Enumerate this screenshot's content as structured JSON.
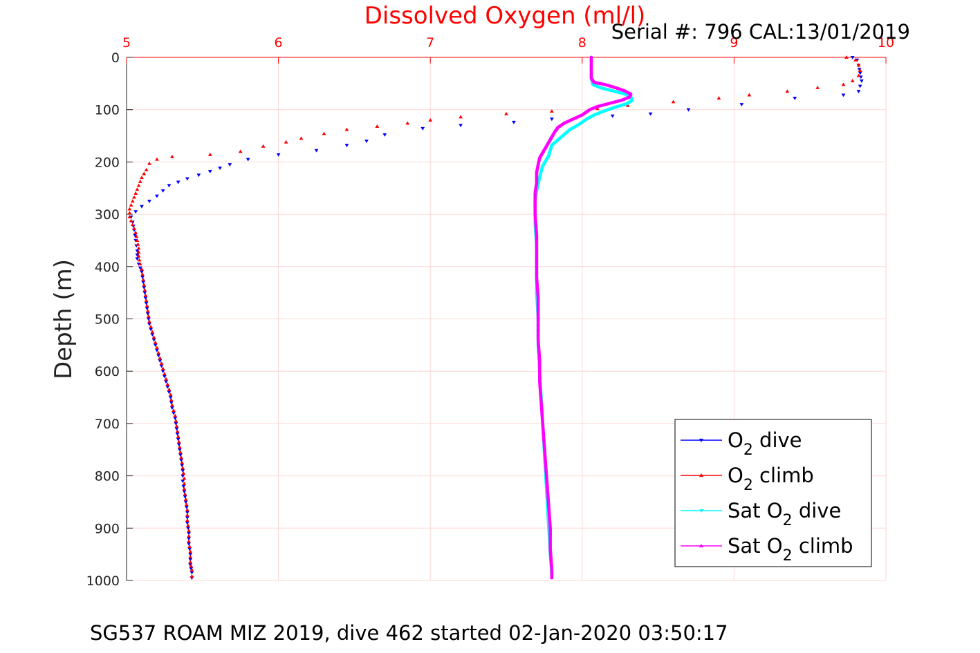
{
  "chart_data": {
    "type": "scatter",
    "title": "Dissolved Oxygen (ml/l)",
    "serial_text": "Serial #: 796  CAL:13/01/2019",
    "caption": "SG537 ROAM MIZ 2019, dive 462 started 02-Jan-2020 03:50:17",
    "xlabel": "Dissolved Oxygen (ml/l)",
    "ylabel": "Depth (m)",
    "xlim": [
      5,
      10
    ],
    "ylim": [
      0,
      1000
    ],
    "y_reversed": true,
    "x_axis_position": "top",
    "x_ticks": [
      5,
      6,
      7,
      8,
      9,
      10
    ],
    "y_ticks": [
      0,
      100,
      200,
      300,
      400,
      500,
      600,
      700,
      800,
      900,
      1000
    ],
    "grid": true,
    "grid_color": "#ffd6d6",
    "title_color": "#ff0000",
    "legend_placement": "bottom-right",
    "series": [
      {
        "name": "O2 dive",
        "label_main": "O",
        "label_sub": "2",
        "label_rest": " dive",
        "color": "#0000ff",
        "marker": "triangle-down",
        "points": [
          [
            9.78,
            0
          ],
          [
            9.81,
            5
          ],
          [
            9.82,
            15
          ],
          [
            9.83,
            30
          ],
          [
            9.84,
            45
          ],
          [
            9.83,
            55
          ],
          [
            9.82,
            65
          ],
          [
            9.72,
            72
          ],
          [
            9.4,
            78
          ],
          [
            9.05,
            90
          ],
          [
            8.7,
            100
          ],
          [
            8.45,
            108
          ],
          [
            8.2,
            112
          ],
          [
            7.8,
            118
          ],
          [
            7.55,
            124
          ],
          [
            7.2,
            130
          ],
          [
            6.95,
            136
          ],
          [
            6.7,
            148
          ],
          [
            6.58,
            160
          ],
          [
            6.45,
            168
          ],
          [
            6.25,
            178
          ],
          [
            6.0,
            186
          ],
          [
            5.8,
            195
          ],
          [
            5.68,
            205
          ],
          [
            5.55,
            218
          ],
          [
            5.4,
            232
          ],
          [
            5.28,
            245
          ],
          [
            5.24,
            255
          ],
          [
            5.2,
            265
          ],
          [
            5.15,
            275
          ],
          [
            5.1,
            285
          ],
          [
            5.06,
            295
          ],
          [
            5.03,
            305
          ],
          [
            5.04,
            315
          ],
          [
            5.05,
            330
          ],
          [
            5.06,
            350
          ],
          [
            5.07,
            370
          ],
          [
            5.07,
            385
          ],
          [
            5.08,
            395
          ],
          [
            5.1,
            410
          ],
          [
            5.11,
            430
          ],
          [
            5.12,
            450
          ],
          [
            5.13,
            470
          ],
          [
            5.14,
            490
          ],
          [
            5.15,
            510
          ],
          [
            5.17,
            530
          ],
          [
            5.19,
            550
          ],
          [
            5.21,
            570
          ],
          [
            5.23,
            590
          ],
          [
            5.25,
            610
          ],
          [
            5.27,
            630
          ],
          [
            5.29,
            650
          ],
          [
            5.3,
            670
          ],
          [
            5.32,
            690
          ],
          [
            5.33,
            710
          ],
          [
            5.34,
            730
          ],
          [
            5.35,
            750
          ],
          [
            5.36,
            770
          ],
          [
            5.37,
            790
          ],
          [
            5.37,
            810
          ],
          [
            5.38,
            830
          ],
          [
            5.39,
            850
          ],
          [
            5.4,
            870
          ],
          [
            5.4,
            890
          ],
          [
            5.41,
            910
          ],
          [
            5.41,
            930
          ],
          [
            5.42,
            950
          ],
          [
            5.42,
            970
          ],
          [
            5.43,
            985
          ],
          [
            5.43,
            995
          ]
        ]
      },
      {
        "name": "O2 climb",
        "label_main": "O",
        "label_sub": "2",
        "label_rest": " climb",
        "color": "#ff0000",
        "marker": "triangle-up",
        "points": [
          [
            9.74,
            0
          ],
          [
            9.8,
            5
          ],
          [
            9.82,
            15
          ],
          [
            9.83,
            25
          ],
          [
            9.82,
            35
          ],
          [
            9.78,
            45
          ],
          [
            9.72,
            52
          ],
          [
            9.55,
            58
          ],
          [
            9.35,
            65
          ],
          [
            9.1,
            72
          ],
          [
            8.9,
            78
          ],
          [
            8.6,
            85
          ],
          [
            8.3,
            92
          ],
          [
            8.1,
            98
          ],
          [
            7.8,
            103
          ],
          [
            7.5,
            108
          ],
          [
            7.2,
            114
          ],
          [
            7.0,
            120
          ],
          [
            6.85,
            126
          ],
          [
            6.65,
            132
          ],
          [
            6.45,
            138
          ],
          [
            6.3,
            146
          ],
          [
            6.15,
            155
          ],
          [
            6.05,
            162
          ],
          [
            5.9,
            170
          ],
          [
            5.75,
            180
          ],
          [
            5.55,
            186
          ],
          [
            5.3,
            190
          ],
          [
            5.2,
            195
          ],
          [
            5.15,
            203
          ],
          [
            5.13,
            215
          ],
          [
            5.1,
            230
          ],
          [
            5.08,
            245
          ],
          [
            5.06,
            260
          ],
          [
            5.04,
            275
          ],
          [
            5.02,
            290
          ],
          [
            5.02,
            305
          ],
          [
            5.04,
            320
          ],
          [
            5.06,
            335
          ],
          [
            5.07,
            350
          ],
          [
            5.08,
            365
          ],
          [
            5.08,
            380
          ],
          [
            5.09,
            395
          ],
          [
            5.1,
            405
          ],
          [
            5.11,
            425
          ],
          [
            5.12,
            445
          ],
          [
            5.13,
            465
          ],
          [
            5.14,
            485
          ],
          [
            5.15,
            505
          ],
          [
            5.17,
            525
          ],
          [
            5.19,
            545
          ],
          [
            5.21,
            565
          ],
          [
            5.23,
            585
          ],
          [
            5.25,
            605
          ],
          [
            5.27,
            625
          ],
          [
            5.29,
            645
          ],
          [
            5.3,
            665
          ],
          [
            5.32,
            685
          ],
          [
            5.33,
            705
          ],
          [
            5.34,
            725
          ],
          [
            5.35,
            745
          ],
          [
            5.36,
            765
          ],
          [
            5.37,
            785
          ],
          [
            5.38,
            805
          ],
          [
            5.38,
            825
          ],
          [
            5.39,
            845
          ],
          [
            5.4,
            865
          ],
          [
            5.4,
            885
          ],
          [
            5.41,
            905
          ],
          [
            5.41,
            925
          ],
          [
            5.42,
            945
          ],
          [
            5.42,
            965
          ],
          [
            5.43,
            980
          ],
          [
            5.43,
            992
          ]
        ]
      },
      {
        "name": "Sat O2 dive",
        "label_main": "Sat O",
        "label_sub": "2",
        "label_rest": " dive",
        "color": "#00ffff",
        "marker": "triangle-down",
        "points": [
          [
            8.06,
            0
          ],
          [
            8.06,
            20
          ],
          [
            8.06,
            40
          ],
          [
            8.07,
            52
          ],
          [
            8.12,
            58
          ],
          [
            8.2,
            64
          ],
          [
            8.28,
            70
          ],
          [
            8.32,
            76
          ],
          [
            8.33,
            82
          ],
          [
            8.3,
            88
          ],
          [
            8.22,
            95
          ],
          [
            8.15,
            102
          ],
          [
            8.08,
            110
          ],
          [
            8.03,
            118
          ],
          [
            7.98,
            128
          ],
          [
            7.92,
            138
          ],
          [
            7.88,
            148
          ],
          [
            7.84,
            158
          ],
          [
            7.8,
            168
          ],
          [
            7.79,
            178
          ],
          [
            7.78,
            188
          ],
          [
            7.76,
            198
          ],
          [
            7.74,
            208
          ],
          [
            7.73,
            218
          ],
          [
            7.72,
            230
          ],
          [
            7.71,
            242
          ],
          [
            7.7,
            256
          ],
          [
            7.69,
            272
          ],
          [
            7.69,
            290
          ],
          [
            7.69,
            320
          ],
          [
            7.7,
            360
          ],
          [
            7.7,
            400
          ],
          [
            7.7,
            450
          ],
          [
            7.71,
            500
          ],
          [
            7.71,
            550
          ],
          [
            7.72,
            600
          ],
          [
            7.73,
            650
          ],
          [
            7.74,
            700
          ],
          [
            7.75,
            750
          ],
          [
            7.76,
            800
          ],
          [
            7.77,
            850
          ],
          [
            7.78,
            900
          ],
          [
            7.79,
            950
          ],
          [
            7.8,
            990
          ]
        ]
      },
      {
        "name": "Sat O2 climb",
        "label_main": "Sat O",
        "label_sub": "2",
        "label_rest": " climb",
        "color": "#ff00ff",
        "marker": "triangle-up",
        "points": [
          [
            8.06,
            0
          ],
          [
            8.06,
            20
          ],
          [
            8.06,
            40
          ],
          [
            8.08,
            48
          ],
          [
            8.15,
            52
          ],
          [
            8.22,
            58
          ],
          [
            8.28,
            64
          ],
          [
            8.32,
            70
          ],
          [
            8.31,
            76
          ],
          [
            8.26,
            82
          ],
          [
            8.18,
            88
          ],
          [
            8.1,
            94
          ],
          [
            8.05,
            100
          ],
          [
            8.0,
            110
          ],
          [
            7.94,
            118
          ],
          [
            7.88,
            126
          ],
          [
            7.84,
            134
          ],
          [
            7.82,
            142
          ],
          [
            7.8,
            152
          ],
          [
            7.78,
            162
          ],
          [
            7.76,
            172
          ],
          [
            7.74,
            182
          ],
          [
            7.72,
            192
          ],
          [
            7.71,
            205
          ],
          [
            7.7,
            220
          ],
          [
            7.7,
            240
          ],
          [
            7.69,
            260
          ],
          [
            7.69,
            280
          ],
          [
            7.69,
            300
          ],
          [
            7.7,
            340
          ],
          [
            7.7,
            380
          ],
          [
            7.7,
            420
          ],
          [
            7.71,
            460
          ],
          [
            7.71,
            500
          ],
          [
            7.71,
            540
          ],
          [
            7.72,
            580
          ],
          [
            7.72,
            620
          ],
          [
            7.73,
            660
          ],
          [
            7.74,
            700
          ],
          [
            7.75,
            740
          ],
          [
            7.76,
            780
          ],
          [
            7.77,
            820
          ],
          [
            7.78,
            860
          ],
          [
            7.79,
            900
          ],
          [
            7.79,
            940
          ],
          [
            7.8,
            980
          ],
          [
            7.8,
            995
          ]
        ]
      }
    ]
  }
}
